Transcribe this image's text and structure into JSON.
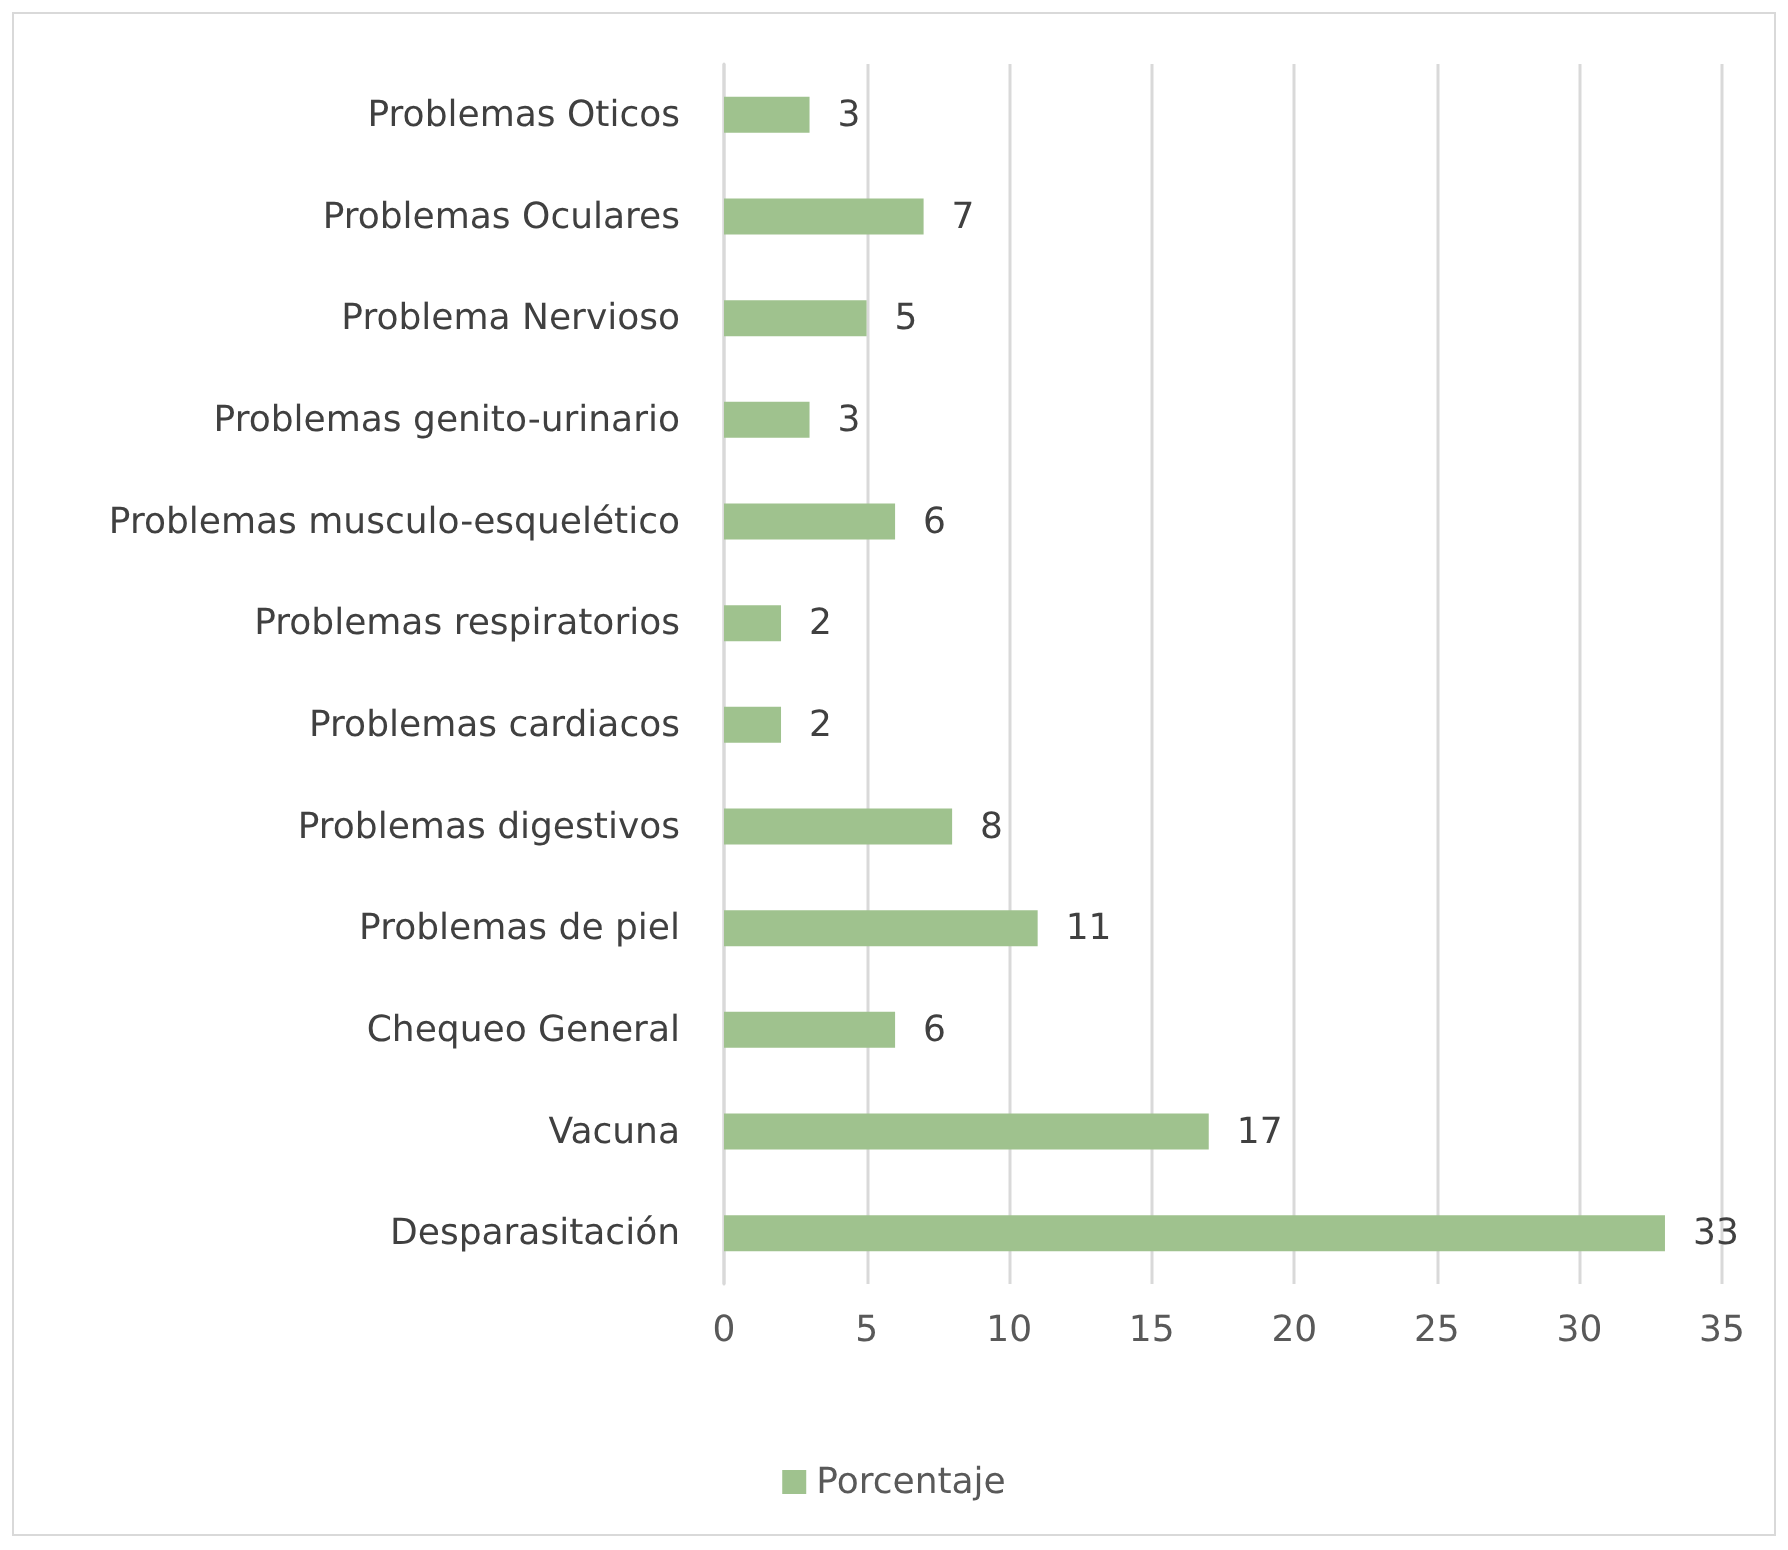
{
  "chart_data": {
    "type": "bar",
    "orientation": "horizontal",
    "categories": [
      "Problemas Oticos",
      "Problemas Oculares",
      "Problema Nervioso",
      "Problemas genito-urinario",
      "Problemas musculo-esquelético",
      "Problemas respiratorios",
      "Problemas cardiacos",
      "Problemas digestivos",
      "Problemas de piel",
      "Chequeo General",
      "Vacuna",
      "Desparasitación"
    ],
    "series": [
      {
        "name": "Porcentaje",
        "color": "#9fc28e",
        "values": [
          3,
          7,
          5,
          3,
          6,
          2,
          2,
          8,
          11,
          6,
          17,
          33
        ]
      }
    ],
    "xlim": [
      0,
      35
    ],
    "xticks": [
      0,
      5,
      10,
      15,
      20,
      25,
      30,
      35
    ],
    "grid": "x",
    "legend": "bottom",
    "data_labels": true
  }
}
